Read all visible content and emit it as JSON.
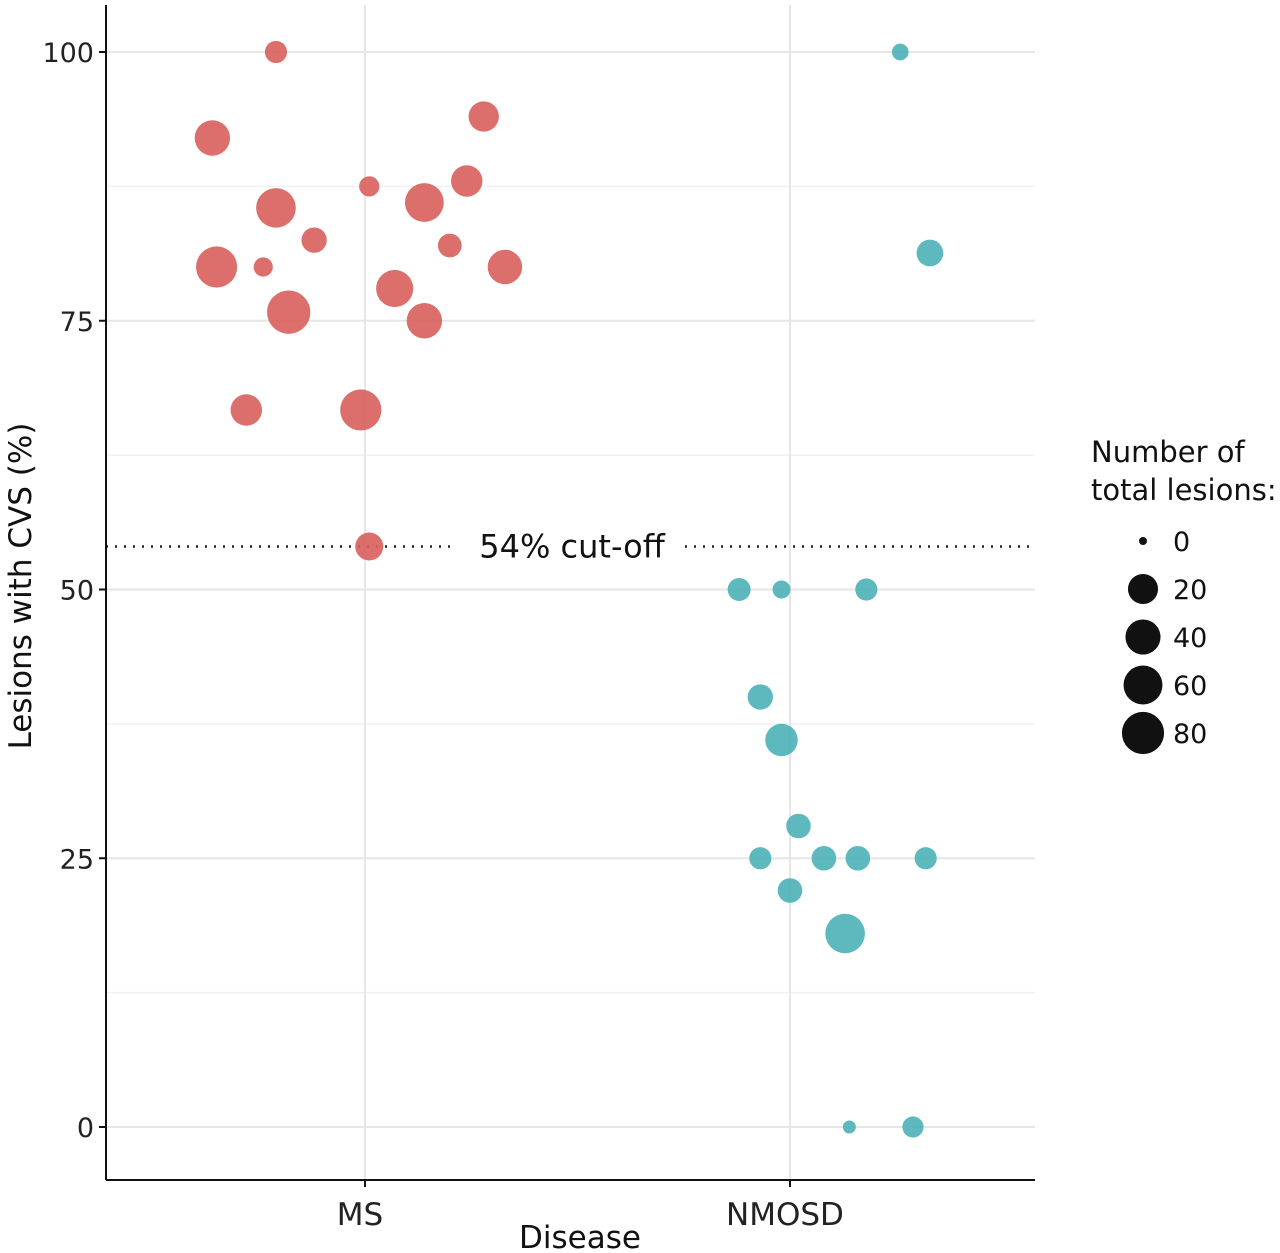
{
  "chart_data": {
    "type": "scatter",
    "xlabel": "Disease",
    "ylabel": "Lesions with CVS (%)",
    "categories": [
      "MS",
      "NMOSD"
    ],
    "ylim": [
      -4,
      104
    ],
    "yticks": [
      0,
      25,
      50,
      75,
      100
    ],
    "grid": true,
    "cutoff": {
      "value": 54,
      "label": "54% cut-off"
    },
    "colors": {
      "MS": "#d9635e",
      "NMOSD": "#4fb3b8"
    },
    "legend": {
      "title_line1": "Number of",
      "title_line2": "total lesions:",
      "sizes": [
        0,
        20,
        40,
        60,
        80
      ],
      "labels": [
        "0",
        "20",
        "40",
        "60",
        "80"
      ],
      "placement": "right"
    },
    "series": [
      {
        "name": "MS",
        "points": [
          {
            "x": -0.21,
            "y": 100,
            "n": 8
          },
          {
            "x": -0.36,
            "y": 92,
            "n": 30
          },
          {
            "x": 0.28,
            "y": 94,
            "n": 20
          },
          {
            "x": 0.01,
            "y": 87.5,
            "n": 6
          },
          {
            "x": 0.24,
            "y": 88,
            "n": 22
          },
          {
            "x": -0.21,
            "y": 85.5,
            "n": 40
          },
          {
            "x": 0.14,
            "y": 86,
            "n": 38
          },
          {
            "x": -0.12,
            "y": 82.5,
            "n": 12
          },
          {
            "x": 0.2,
            "y": 82,
            "n": 10
          },
          {
            "x": -0.35,
            "y": 80,
            "n": 44
          },
          {
            "x": -0.24,
            "y": 80,
            "n": 5
          },
          {
            "x": 0.33,
            "y": 80,
            "n": 28
          },
          {
            "x": 0.07,
            "y": 78,
            "n": 34
          },
          {
            "x": -0.18,
            "y": 75.8,
            "n": 50
          },
          {
            "x": 0.14,
            "y": 75,
            "n": 30
          },
          {
            "x": -0.28,
            "y": 66.7,
            "n": 22
          },
          {
            "x": -0.01,
            "y": 66.7,
            "n": 44
          },
          {
            "x": 0.01,
            "y": 54,
            "n": 16
          }
        ]
      },
      {
        "name": "NMOSD",
        "points": [
          {
            "x": 0.26,
            "y": 100,
            "n": 3
          },
          {
            "x": 0.33,
            "y": 81.3,
            "n": 14
          },
          {
            "x": -0.12,
            "y": 50,
            "n": 9
          },
          {
            "x": -0.02,
            "y": 50,
            "n": 4
          },
          {
            "x": 0.18,
            "y": 50,
            "n": 8
          },
          {
            "x": -0.07,
            "y": 40,
            "n": 12
          },
          {
            "x": -0.02,
            "y": 36,
            "n": 24
          },
          {
            "x": 0.02,
            "y": 28,
            "n": 11
          },
          {
            "x": -0.07,
            "y": 25,
            "n": 8
          },
          {
            "x": 0.08,
            "y": 25,
            "n": 11
          },
          {
            "x": 0.16,
            "y": 25,
            "n": 11
          },
          {
            "x": 0.32,
            "y": 25,
            "n": 8
          },
          {
            "x": 0.0,
            "y": 22,
            "n": 11
          },
          {
            "x": 0.13,
            "y": 18,
            "n": 40
          },
          {
            "x": 0.14,
            "y": 0,
            "n": 1
          },
          {
            "x": 0.29,
            "y": 0,
            "n": 7
          }
        ]
      }
    ]
  }
}
